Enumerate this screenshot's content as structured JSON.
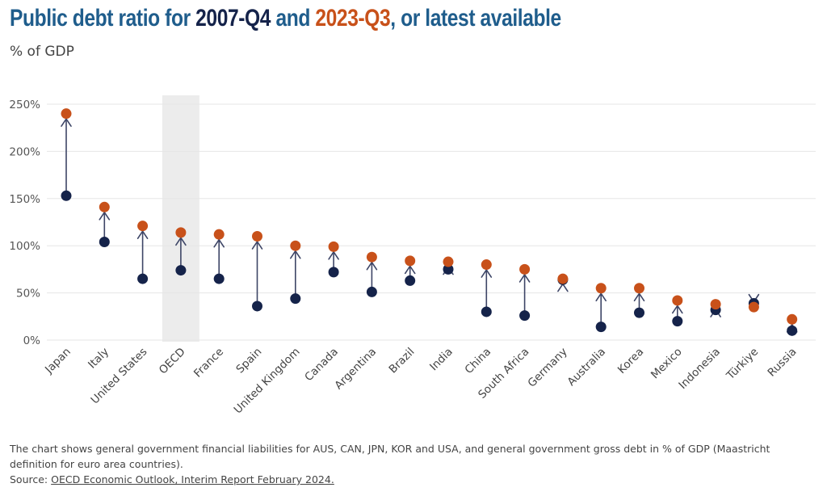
{
  "title": {
    "part1": "Public debt ratio for ",
    "period1": "2007-Q4",
    "part2": " and ",
    "period2": "2023-Q3",
    "part3": ", or latest available"
  },
  "subtitle": "% of GDP",
  "colors": {
    "start": "#15234a",
    "end": "#c8511a",
    "arrow": "#3d4566",
    "highlight": "#ececec",
    "title": "#1f5d8c"
  },
  "chart_data": {
    "type": "dumbbell",
    "categories": [
      "Japan",
      "Italy",
      "United States",
      "OECD",
      "France",
      "Spain",
      "United Kingdom",
      "Canada",
      "Argentina",
      "Brazil",
      "India",
      "China",
      "South Africa",
      "Germany",
      "Australia",
      "Korea",
      "Mexico",
      "Indonesia",
      "Türkiye",
      "Russia"
    ],
    "series": [
      {
        "name": "2007-Q4",
        "values": [
          153,
          104,
          65,
          74,
          65,
          36,
          44,
          72,
          51,
          63,
          75,
          30,
          26,
          64,
          14,
          29,
          20,
          32,
          39,
          10
        ]
      },
      {
        "name": "2023-Q3",
        "values": [
          240,
          141,
          121,
          114,
          112,
          110,
          100,
          99,
          88,
          84,
          83,
          80,
          75,
          65,
          55,
          55,
          42,
          38,
          35,
          22
        ]
      }
    ],
    "highlight_category": "OECD",
    "yticks": [
      "0%",
      "50%",
      "100%",
      "150%",
      "200%",
      "250%"
    ],
    "ylim": [
      0,
      260
    ],
    "grid": true
  },
  "footer": {
    "note": "The chart shows general government financial liabilities for AUS, CAN, JPN, KOR and USA, and general government gross debt in % of GDP (Maastricht definition for euro area countries).",
    "source_label": "Source: ",
    "source_link": "OECD Economic Outlook, Interim Report February 2024."
  }
}
